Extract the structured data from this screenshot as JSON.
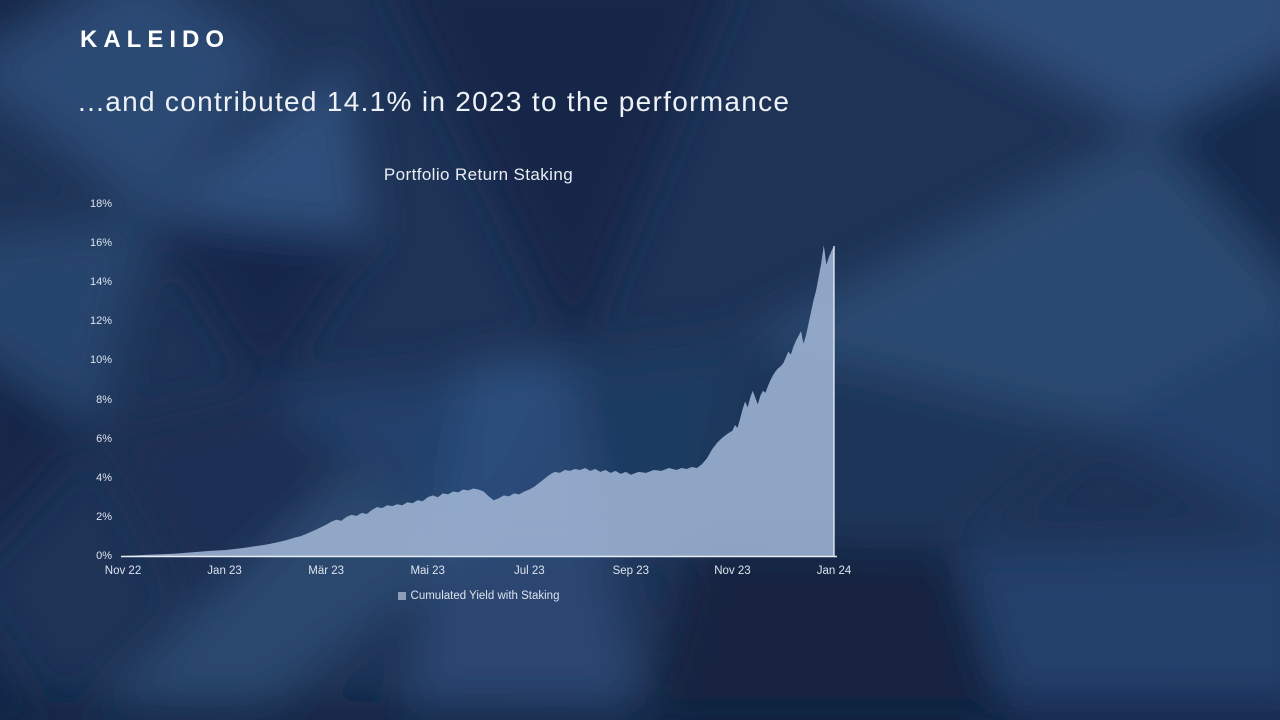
{
  "slide": {
    "logo": "KALEIDO",
    "title": "...and contributed 14.1% in 2023 to the performance"
  },
  "theme": {
    "background": "#1d3254",
    "background_dark": "#122340",
    "background_light": "#2f4f7b",
    "text": "#eef1f6",
    "axis_text": "#dce3ee"
  },
  "chart_data": {
    "type": "area",
    "title": "Portfolio Return Staking",
    "xlabel": "",
    "ylabel": "",
    "xlim": [
      0,
      14
    ],
    "ylim": [
      0,
      18
    ],
    "grid": false,
    "legend_position": "bottom",
    "axis_color": "#e8ecf3",
    "legend_swatch_color": "#8c9cba",
    "x_unit": "months since Nov 2022",
    "y_ticks": [
      {
        "value": 18,
        "label": "18%"
      },
      {
        "value": 16,
        "label": "16%"
      },
      {
        "value": 14,
        "label": "14%"
      },
      {
        "value": 12,
        "label": "12%"
      },
      {
        "value": 10,
        "label": "10%"
      },
      {
        "value": 8,
        "label": "8%"
      },
      {
        "value": 6,
        "label": "6%"
      },
      {
        "value": 4,
        "label": "4%"
      },
      {
        "value": 2,
        "label": "2%"
      },
      {
        "value": 0,
        "label": "0%"
      }
    ],
    "x_ticks": [
      {
        "month": 0,
        "label": "Nov 22"
      },
      {
        "month": 2,
        "label": "Jan 23"
      },
      {
        "month": 4,
        "label": "Mär 23"
      },
      {
        "month": 6,
        "label": "Mai 23"
      },
      {
        "month": 8,
        "label": "Jul 23"
      },
      {
        "month": 10,
        "label": "Sep 23"
      },
      {
        "month": 12,
        "label": "Nov 23"
      },
      {
        "month": 14,
        "label": "Jan 24"
      }
    ],
    "series": [
      {
        "name": "Cumulated Yield with Staking",
        "fill": "rgba(163,184,216,0.85)",
        "edge_color": "rgba(236,241,248,0.85)",
        "points": [
          [
            0,
            0
          ],
          [
            0.25,
            0.03
          ],
          [
            0.5,
            0.06
          ],
          [
            0.75,
            0.09
          ],
          [
            1,
            0.12
          ],
          [
            1.25,
            0.17
          ],
          [
            1.5,
            0.22
          ],
          [
            1.75,
            0.27
          ],
          [
            2,
            0.3
          ],
          [
            2.2,
            0.36
          ],
          [
            2.4,
            0.42
          ],
          [
            2.6,
            0.5
          ],
          [
            2.8,
            0.58
          ],
          [
            3,
            0.68
          ],
          [
            3.2,
            0.8
          ],
          [
            3.4,
            0.95
          ],
          [
            3.5,
            1.02
          ],
          [
            3.6,
            1.12
          ],
          [
            3.8,
            1.35
          ],
          [
            4,
            1.6
          ],
          [
            4.1,
            1.75
          ],
          [
            4.2,
            1.85
          ],
          [
            4.3,
            1.8
          ],
          [
            4.4,
            2.0
          ],
          [
            4.5,
            2.1
          ],
          [
            4.6,
            2.05
          ],
          [
            4.7,
            2.2
          ],
          [
            4.8,
            2.15
          ],
          [
            4.9,
            2.35
          ],
          [
            5,
            2.5
          ],
          [
            5.1,
            2.45
          ],
          [
            5.2,
            2.6
          ],
          [
            5.3,
            2.55
          ],
          [
            5.4,
            2.65
          ],
          [
            5.5,
            2.6
          ],
          [
            5.6,
            2.75
          ],
          [
            5.7,
            2.7
          ],
          [
            5.8,
            2.85
          ],
          [
            5.9,
            2.8
          ],
          [
            6,
            3.0
          ],
          [
            6.1,
            3.1
          ],
          [
            6.2,
            3.0
          ],
          [
            6.3,
            3.2
          ],
          [
            6.4,
            3.15
          ],
          [
            6.5,
            3.3
          ],
          [
            6.6,
            3.25
          ],
          [
            6.7,
            3.4
          ],
          [
            6.8,
            3.35
          ],
          [
            6.9,
            3.45
          ],
          [
            7,
            3.4
          ],
          [
            7.1,
            3.3
          ],
          [
            7.2,
            3.05
          ],
          [
            7.3,
            2.85
          ],
          [
            7.4,
            2.95
          ],
          [
            7.5,
            3.1
          ],
          [
            7.6,
            3.05
          ],
          [
            7.7,
            3.2
          ],
          [
            7.8,
            3.15
          ],
          [
            7.9,
            3.3
          ],
          [
            8,
            3.4
          ],
          [
            8.1,
            3.55
          ],
          [
            8.2,
            3.75
          ],
          [
            8.3,
            3.95
          ],
          [
            8.4,
            4.15
          ],
          [
            8.5,
            4.3
          ],
          [
            8.6,
            4.25
          ],
          [
            8.7,
            4.4
          ],
          [
            8.8,
            4.35
          ],
          [
            8.9,
            4.45
          ],
          [
            9,
            4.4
          ],
          [
            9.1,
            4.5
          ],
          [
            9.2,
            4.35
          ],
          [
            9.3,
            4.45
          ],
          [
            9.4,
            4.3
          ],
          [
            9.5,
            4.4
          ],
          [
            9.6,
            4.25
          ],
          [
            9.7,
            4.35
          ],
          [
            9.8,
            4.2
          ],
          [
            9.9,
            4.3
          ],
          [
            10,
            4.15
          ],
          [
            10.15,
            4.3
          ],
          [
            10.3,
            4.25
          ],
          [
            10.45,
            4.4
          ],
          [
            10.6,
            4.35
          ],
          [
            10.75,
            4.5
          ],
          [
            10.9,
            4.4
          ],
          [
            11,
            4.5
          ],
          [
            11.1,
            4.45
          ],
          [
            11.2,
            4.55
          ],
          [
            11.3,
            4.5
          ],
          [
            11.4,
            4.7
          ],
          [
            11.5,
            5.0
          ],
          [
            11.6,
            5.45
          ],
          [
            11.7,
            5.8
          ],
          [
            11.8,
            6.05
          ],
          [
            11.9,
            6.25
          ],
          [
            12,
            6.4
          ],
          [
            12.05,
            6.7
          ],
          [
            12.1,
            6.55
          ],
          [
            12.15,
            7.0
          ],
          [
            12.2,
            7.5
          ],
          [
            12.25,
            7.9
          ],
          [
            12.3,
            7.6
          ],
          [
            12.35,
            8.1
          ],
          [
            12.4,
            8.45
          ],
          [
            12.5,
            7.75
          ],
          [
            12.55,
            8.2
          ],
          [
            12.6,
            8.45
          ],
          [
            12.65,
            8.35
          ],
          [
            12.7,
            8.7
          ],
          [
            12.75,
            9.0
          ],
          [
            12.8,
            9.25
          ],
          [
            12.85,
            9.45
          ],
          [
            12.9,
            9.6
          ],
          [
            12.95,
            9.7
          ],
          [
            13,
            9.85
          ],
          [
            13.05,
            10.15
          ],
          [
            13.1,
            10.45
          ],
          [
            13.15,
            10.3
          ],
          [
            13.2,
            10.7
          ],
          [
            13.25,
            11.0
          ],
          [
            13.3,
            11.25
          ],
          [
            13.35,
            11.5
          ],
          [
            13.4,
            10.85
          ],
          [
            13.45,
            11.3
          ],
          [
            13.5,
            11.9
          ],
          [
            13.55,
            12.5
          ],
          [
            13.6,
            13.1
          ],
          [
            13.65,
            13.6
          ],
          [
            13.7,
            14.3
          ],
          [
            13.75,
            15.0
          ],
          [
            13.8,
            15.9
          ],
          [
            13.85,
            14.9
          ],
          [
            13.9,
            15.3
          ],
          [
            13.95,
            15.6
          ],
          [
            14,
            15.85
          ]
        ]
      }
    ]
  }
}
